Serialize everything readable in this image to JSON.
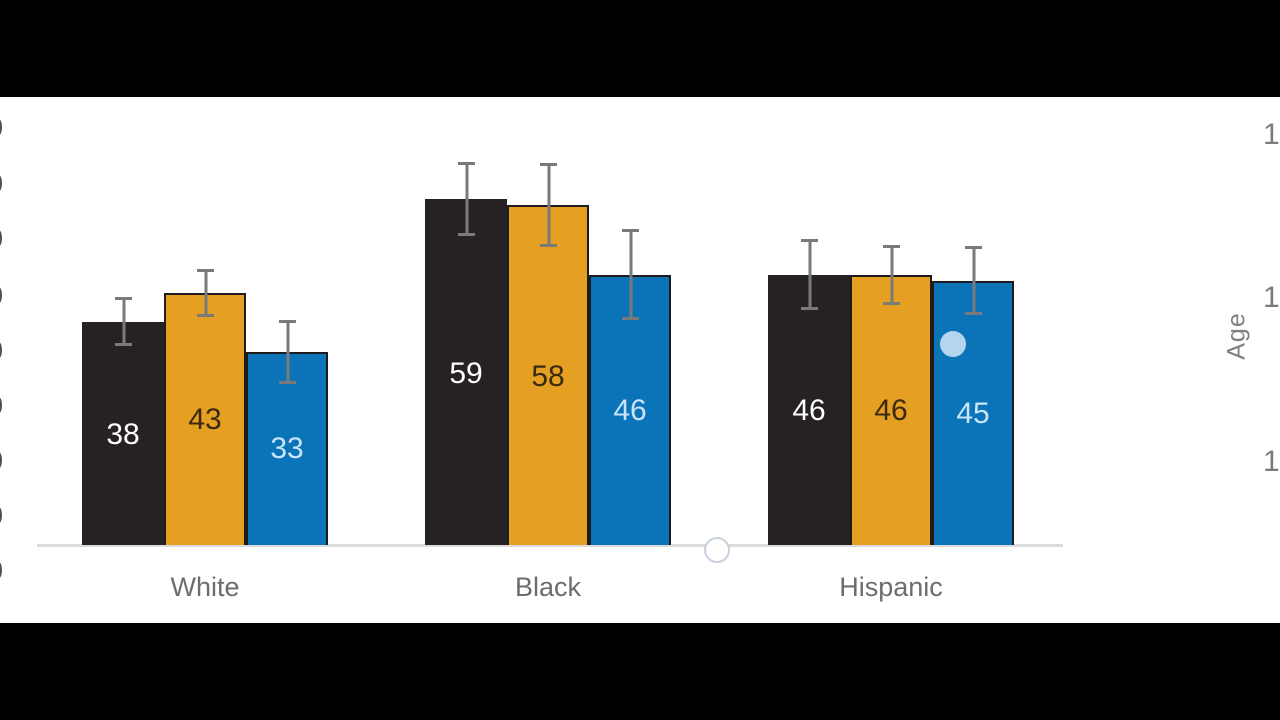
{
  "chart_data": {
    "type": "bar",
    "title": "",
    "xlabel": "",
    "ylabel": "",
    "categories": [
      "White",
      "Black",
      "Hispanic"
    ],
    "series": [
      {
        "name": "dark",
        "color": "#262123",
        "label_color": "#ffffff",
        "outline": false,
        "values": [
          38,
          59,
          46
        ],
        "errors_plus_minus": [
          4.2,
          6.3,
          6.1
        ]
      },
      {
        "name": "orange",
        "color": "#E5A024",
        "label_color": "#3a2a0e",
        "outline": true,
        "values": [
          43,
          58,
          46
        ],
        "errors_plus_minus": [
          4.1,
          7.2,
          5.1
        ]
      },
      {
        "name": "blue",
        "color": "#0B74B8",
        "label_color": "#c9e4f6",
        "outline": true,
        "values": [
          33,
          46,
          45
        ],
        "errors_plus_minus": [
          5.5,
          7.8,
          5.9
        ]
      }
    ],
    "data_labels_shown": true,
    "error_bars_shown": true,
    "legend": "none",
    "grid": false,
    "right_axis_title": "Age",
    "right_axis_tick_labels_partial": [
      "1",
      "1",
      "1"
    ],
    "left_axis_tick_labels_partial": [
      "0",
      "0",
      "0",
      "0",
      "0",
      "0",
      "0",
      "0",
      "0"
    ]
  },
  "colors": {
    "background": "#ffffff",
    "letterbox": "#000000",
    "bar_outline": "#1f1a1b",
    "error_bar": "#7a7a7a",
    "axis_line": "#dcdcdc",
    "category_label": "#6d6d6d",
    "axis_tick_label_right": "#7c7c7c",
    "axis_tick_label_left": "#4f4f4f",
    "pointer_dot": "#b3d6ee",
    "handle_ring_border": "#c9d1dd"
  }
}
